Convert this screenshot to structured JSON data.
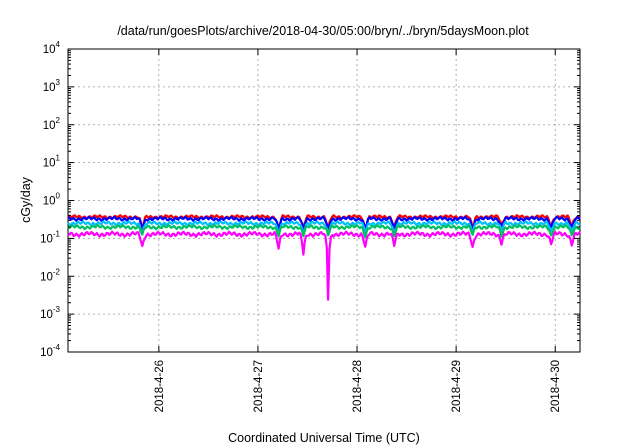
{
  "chart_data": {
    "type": "line",
    "title": "/data/run/goesPlots/archive/2018-04-30/05:00/bryn/../bryn/5daysMoon.plot",
    "xlabel": "Coordinated Universal Time (UTC)",
    "ylabel": "cGy/day",
    "y_scale": "log",
    "ylim": [
      0.0001,
      10000
    ],
    "y_ticks": [
      {
        "value": 10000,
        "base": "10",
        "exp": "4"
      },
      {
        "value": 1000,
        "base": "10",
        "exp": "3"
      },
      {
        "value": 100,
        "base": "10",
        "exp": "2"
      },
      {
        "value": 10,
        "base": "10",
        "exp": "1"
      },
      {
        "value": 1,
        "base": "10",
        "exp": "0"
      },
      {
        "value": 0.1,
        "base": "10",
        "exp": "-1"
      },
      {
        "value": 0.01,
        "base": "10",
        "exp": "-2"
      },
      {
        "value": 0.001,
        "base": "10",
        "exp": "-3"
      },
      {
        "value": 0.0001,
        "base": "10",
        "exp": "-4"
      }
    ],
    "xlim": [
      "2018-04-25T02:00",
      "2018-04-30T06:00"
    ],
    "x_ticks": [
      {
        "value": "2018-04-26",
        "label": "2018-4-26"
      },
      {
        "value": "2018-04-27",
        "label": "2018-4-27"
      },
      {
        "value": "2018-04-28",
        "label": "2018-4-28"
      },
      {
        "value": "2018-04-29",
        "label": "2018-4-29"
      },
      {
        "value": "2018-04-30",
        "label": "2018-4-30"
      }
    ],
    "grid": true,
    "dips": [
      {
        "x": "2018-04-25T20:00",
        "depth": 0.45
      },
      {
        "x": "2018-04-27T05:00",
        "depth": 0.4
      },
      {
        "x": "2018-04-27T11:00",
        "depth": 0.3
      },
      {
        "x": "2018-04-27T17:00",
        "depth": 0.02
      },
      {
        "x": "2018-04-28T02:00",
        "depth": 0.45
      },
      {
        "x": "2018-04-28T09:00",
        "depth": 0.5
      },
      {
        "x": "2018-04-29T04:00",
        "depth": 0.45
      },
      {
        "x": "2018-04-29T11:00",
        "depth": 0.6
      },
      {
        "x": "2018-04-29T23:00",
        "depth": 0.55
      },
      {
        "x": "2018-04-30T04:00",
        "depth": 0.55
      }
    ],
    "series": [
      {
        "color": "#ff0000",
        "base": 0.37,
        "variation": 0.04
      },
      {
        "color": "#0000ff",
        "base": 0.33,
        "variation": 0.04
      },
      {
        "color": "#00bfff",
        "base": 0.25,
        "variation": 0.03
      },
      {
        "color": "#00c060",
        "base": 0.2,
        "variation": 0.025
      },
      {
        "color": "#ff00ff",
        "base": 0.13,
        "variation": 0.02
      }
    ]
  }
}
